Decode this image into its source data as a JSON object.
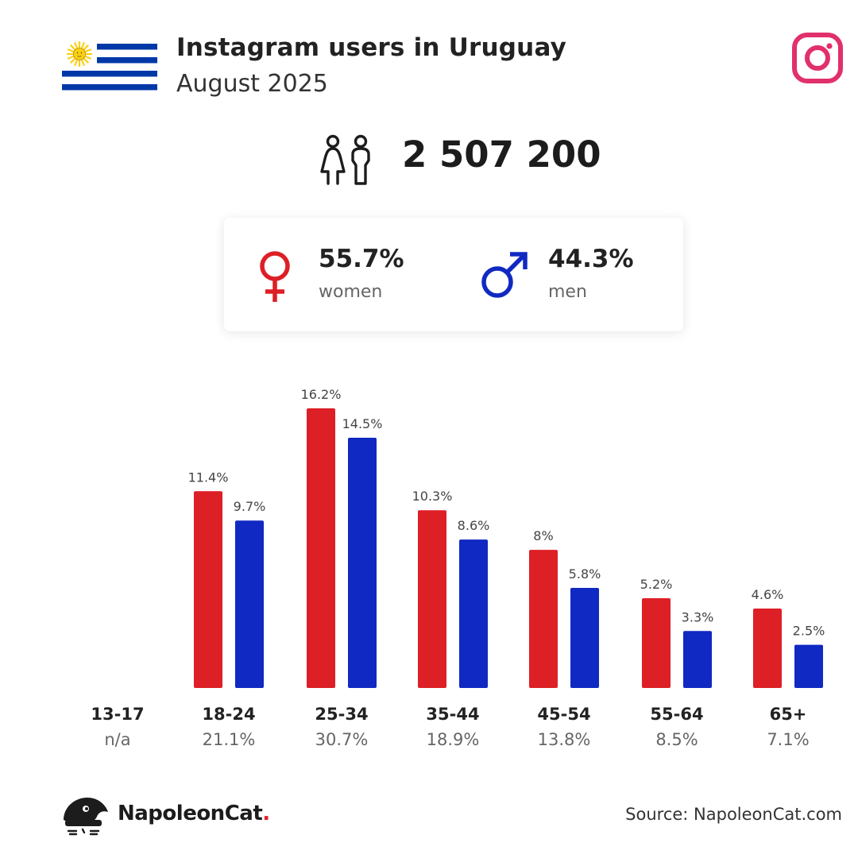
{
  "header": {
    "title": "Instagram users in Uruguay",
    "subtitle": "August 2025"
  },
  "total": {
    "value": "2 507 200"
  },
  "gender": {
    "women": {
      "pct": "55.7%",
      "label": "women"
    },
    "men": {
      "pct": "44.3%",
      "label": "men"
    }
  },
  "colors": {
    "women": "#dd1f26",
    "men": "#1029c2",
    "instagram": "#e1306c",
    "flag_blue": "#0038a8",
    "sun": "#fcd116"
  },
  "icons": {
    "flag": "uruguay-flag-icon",
    "brand": "instagram-icon",
    "total": "people-icon",
    "women": "female-symbol-icon",
    "men": "male-symbol-icon",
    "logo": "napoleoncat-icon"
  },
  "chart_data": {
    "type": "bar",
    "categories": [
      "13-17",
      "18-24",
      "25-34",
      "35-44",
      "45-54",
      "55-64",
      "65+"
    ],
    "totals": [
      "n/a",
      "21.1%",
      "30.7%",
      "18.9%",
      "13.8%",
      "8.5%",
      "7.1%"
    ],
    "series": [
      {
        "key": "women",
        "values": [
          null,
          11.4,
          16.2,
          10.3,
          8,
          5.2,
          4.6
        ],
        "labels": [
          "",
          "11.4%",
          "16.2%",
          "10.3%",
          "8%",
          "5.2%",
          "4.6%"
        ]
      },
      {
        "key": "men",
        "values": [
          null,
          9.7,
          14.5,
          8.6,
          5.8,
          3.3,
          2.5
        ],
        "labels": [
          "",
          "9.7%",
          "14.5%",
          "8.6%",
          "5.8%",
          "3.3%",
          "2.5%"
        ]
      }
    ],
    "ylim": [
      0,
      16.2
    ],
    "grid": false
  },
  "footer": {
    "brand_name": "NapoleonCat",
    "brand_dot": ".",
    "source": "Source: NapoleonCat.com"
  }
}
